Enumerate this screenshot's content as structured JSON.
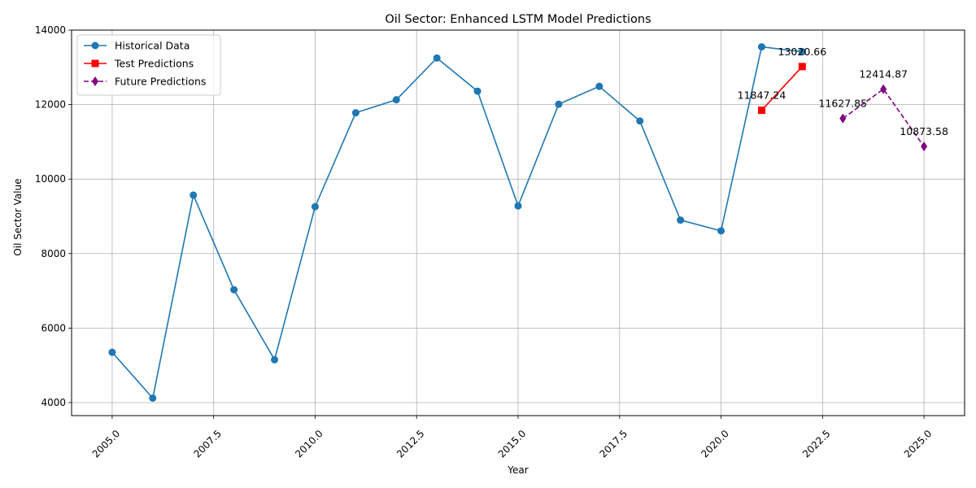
{
  "chart_data": {
    "type": "line",
    "title": "Oil Sector: Enhanced LSTM Model Predictions",
    "xlabel": "Year",
    "ylabel": "Oil Sector Value",
    "xlim": [
      2004.0,
      2026.0
    ],
    "ylim": [
      3650,
      14000
    ],
    "x_ticks": [
      2005.0,
      2007.5,
      2010.0,
      2012.5,
      2015.0,
      2017.5,
      2020.0,
      2022.5,
      2025.0
    ],
    "x_tick_labels": [
      "2005.0",
      "2007.5",
      "2010.0",
      "2012.5",
      "2015.0",
      "2017.5",
      "2020.0",
      "2022.5",
      "2025.0"
    ],
    "y_ticks": [
      4000,
      6000,
      8000,
      10000,
      12000,
      14000
    ],
    "y_tick_labels": [
      "4000",
      "6000",
      "8000",
      "10000",
      "12000",
      "14000"
    ],
    "grid": true,
    "legend_position": "top-left",
    "series": [
      {
        "name": "Historical Data",
        "color": "#1f77b4",
        "marker": "circle",
        "linestyle": "solid",
        "x": [
          2005,
          2006,
          2007,
          2008,
          2009,
          2010,
          2011,
          2012,
          2013,
          2014,
          2015,
          2016,
          2017,
          2018,
          2019,
          2020,
          2021,
          2022
        ],
        "values": [
          5350,
          4120,
          9570,
          7030,
          5150,
          9260,
          11780,
          12130,
          13250,
          12360,
          9280,
          12010,
          12490,
          11560,
          8900,
          8610,
          13550,
          13420
        ]
      },
      {
        "name": "Test Predictions",
        "color": "#ff0000",
        "marker": "square",
        "linestyle": "solid",
        "x": [
          2021,
          2022
        ],
        "values": [
          11847.24,
          13020.66
        ]
      },
      {
        "name": "Future Predictions",
        "color": "#800080",
        "marker": "diamond",
        "linestyle": "dashed",
        "x": [
          2023,
          2024,
          2025
        ],
        "values": [
          11627.85,
          12414.87,
          10873.58
        ]
      }
    ],
    "annotations": [
      {
        "x": 2021,
        "y": 11847.24,
        "text": "11847.24"
      },
      {
        "x": 2022,
        "y": 13020.66,
        "text": "13020.66"
      },
      {
        "x": 2023,
        "y": 11627.85,
        "text": "11627.85"
      },
      {
        "x": 2024,
        "y": 12414.87,
        "text": "12414.87"
      },
      {
        "x": 2025,
        "y": 10873.58,
        "text": "10873.58"
      }
    ]
  }
}
